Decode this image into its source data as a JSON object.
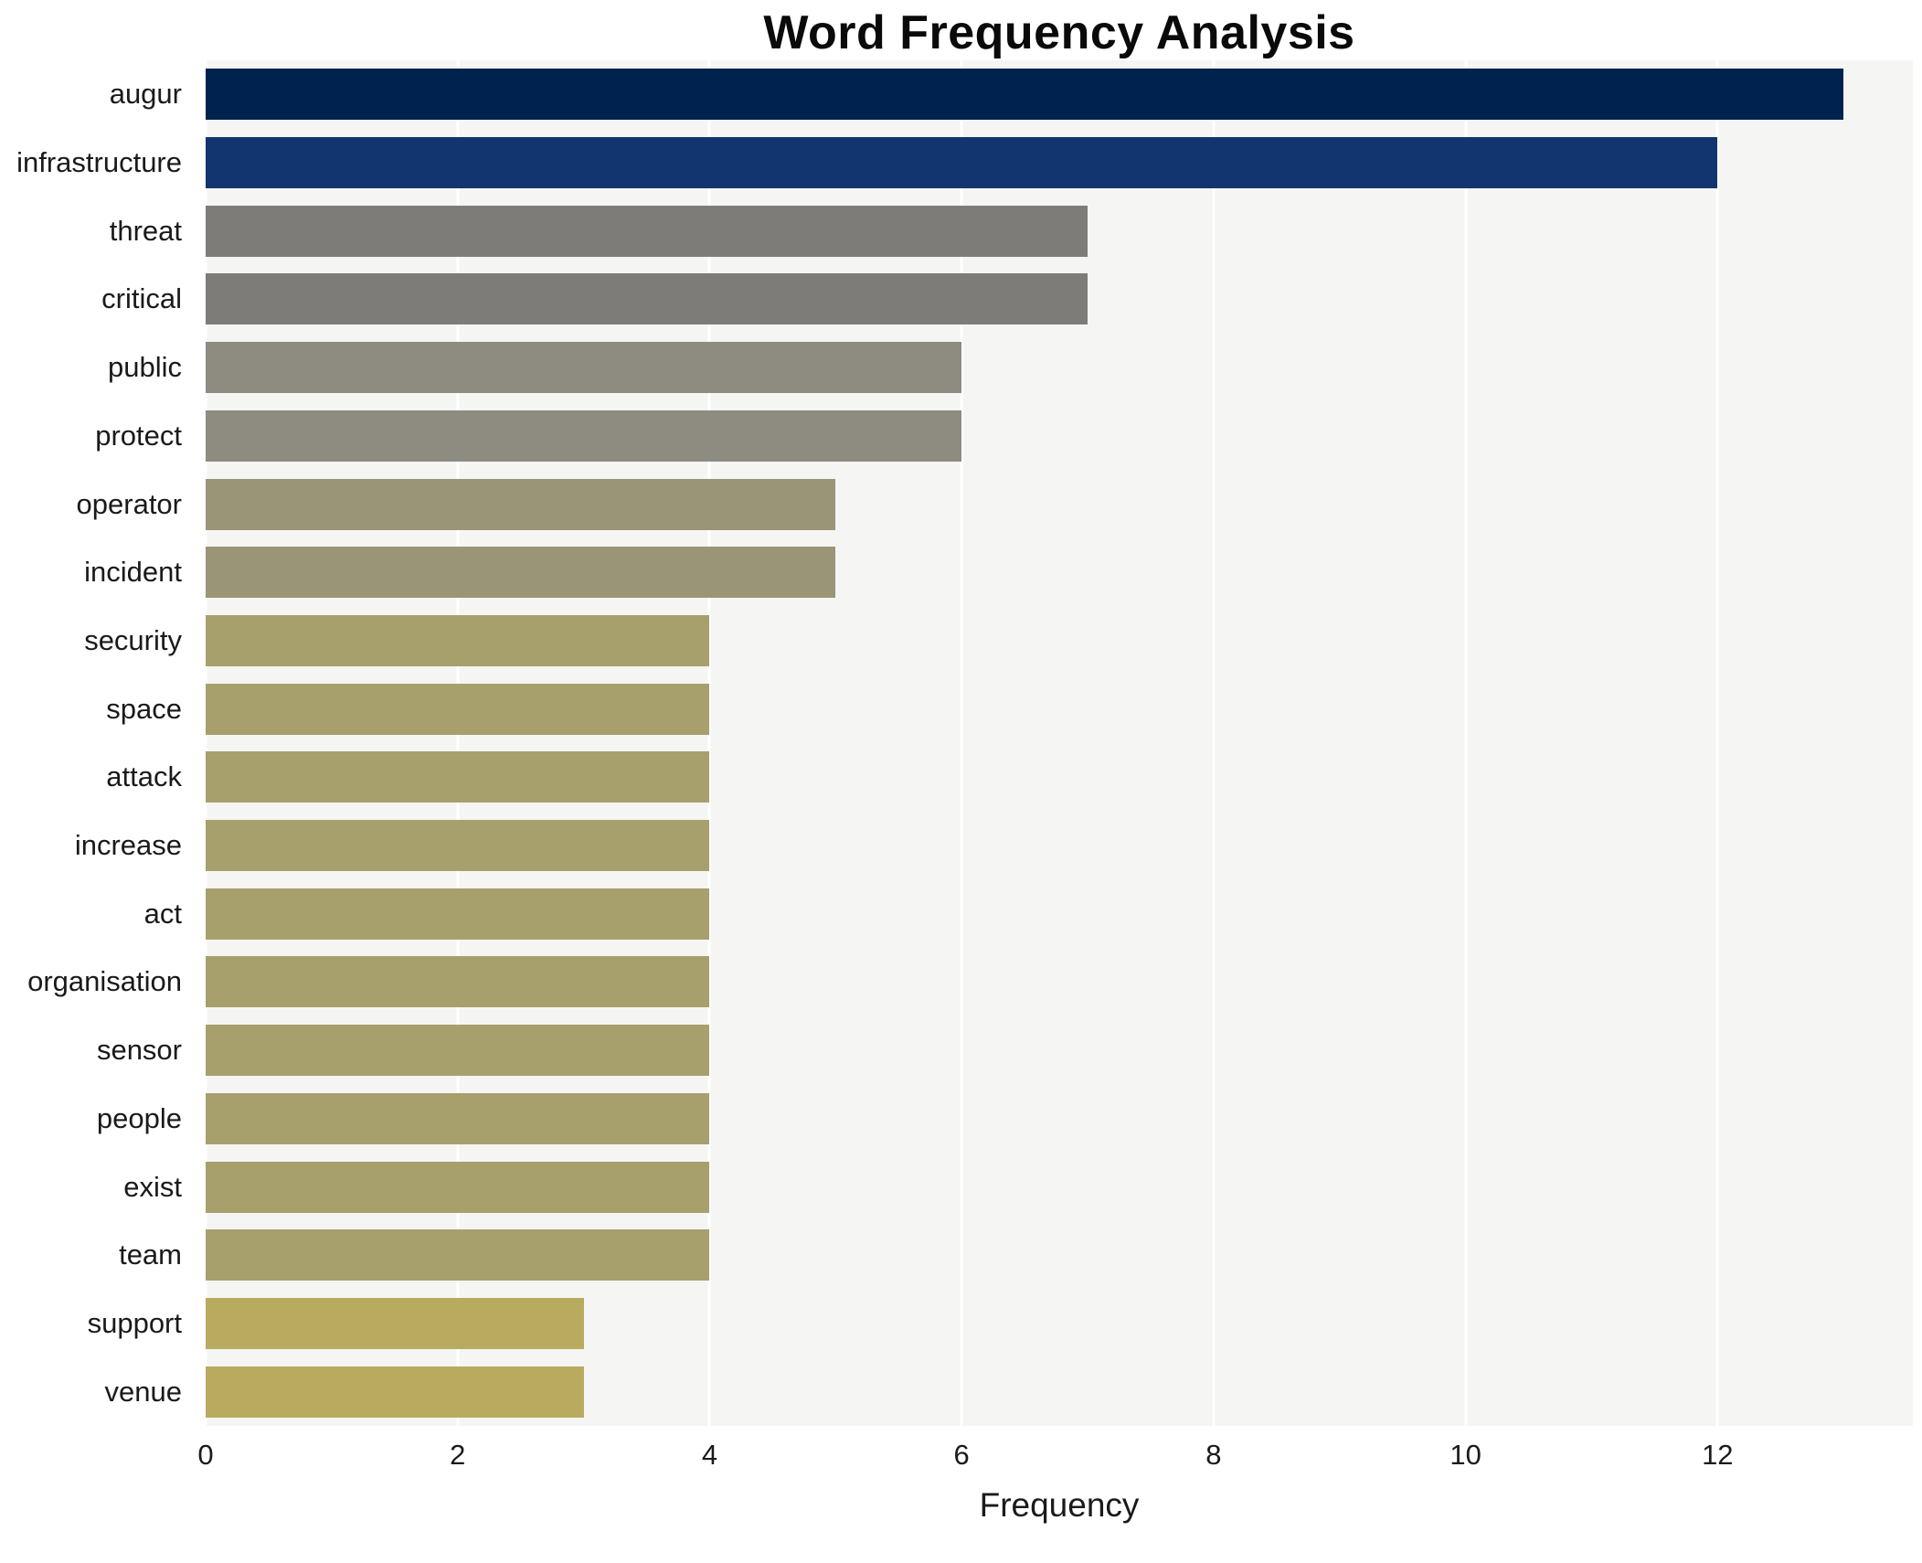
{
  "chart_data": {
    "type": "bar",
    "orientation": "horizontal",
    "title": "Word Frequency Analysis",
    "xlabel": "Frequency",
    "ylabel": "",
    "categories": [
      "augur",
      "infrastructure",
      "threat",
      "critical",
      "public",
      "protect",
      "operator",
      "incident",
      "security",
      "space",
      "attack",
      "increase",
      "act",
      "organisation",
      "sensor",
      "people",
      "exist",
      "team",
      "support",
      "venue"
    ],
    "values": [
      13,
      12,
      7,
      7,
      6,
      6,
      5,
      5,
      4,
      4,
      4,
      4,
      4,
      4,
      4,
      4,
      4,
      4,
      3,
      3
    ],
    "bar_colors": [
      "#00224e",
      "#12356f",
      "#7d7c79",
      "#7d7c79",
      "#8e8b81",
      "#8e8b81",
      "#9b9577",
      "#9b9577",
      "#a7a06d",
      "#a7a06d",
      "#a7a06d",
      "#a7a06d",
      "#a7a06d",
      "#a7a06d",
      "#a7a06d",
      "#a7a06d",
      "#a7a06d",
      "#a7a06d",
      "#b9ab5e",
      "#b9ab5e"
    ],
    "xlim": [
      0,
      13.55
    ],
    "xticks": [
      0,
      2,
      4,
      6,
      8,
      10,
      12
    ],
    "grid": true,
    "legend": "none",
    "plot_bg": "#f5f5f3",
    "page_bg": "#ffffff"
  }
}
